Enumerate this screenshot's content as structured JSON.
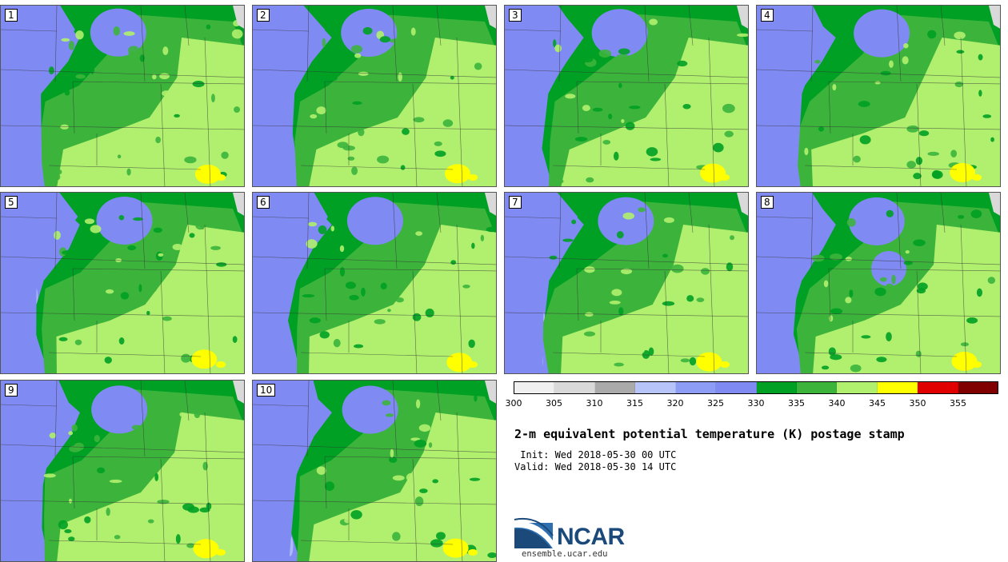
{
  "panels": [
    {
      "label": "1"
    },
    {
      "label": "2"
    },
    {
      "label": "3"
    },
    {
      "label": "4"
    },
    {
      "label": "5"
    },
    {
      "label": "6"
    },
    {
      "label": "7"
    },
    {
      "label": "8"
    },
    {
      "label": "9"
    },
    {
      "label": "10"
    }
  ],
  "colorbar": {
    "colors": [
      "#f0f0f0",
      "#d9d9d9",
      "#aaaaaa",
      "#b7c4fa",
      "#8d9cf5",
      "#7f8af3",
      "#00a024",
      "#3cb43c",
      "#b0f06e",
      "#ffff00",
      "#e00000",
      "#800000"
    ],
    "tick_labels": [
      "300",
      "305",
      "310",
      "315",
      "320",
      "325",
      "330",
      "335",
      "340",
      "345",
      "350",
      "355"
    ]
  },
  "title": "2-m equivalent potential temperature (K) postage stamp",
  "init": " Init: Wed 2018-05-30 00 UTC",
  "valid": "Valid: Wed 2018-05-30 14 UTC",
  "logo": {
    "name": "NCAR",
    "url": "ensemble.ucar.edu",
    "colors": {
      "dark_blue": "#1b4a7a",
      "light_blue": "#2e6fb0"
    }
  },
  "map_colors": {
    "cold": "#7f8af3",
    "cold_light": "#b7c4fa",
    "dark_green": "#00a024",
    "green": "#3cb43c",
    "light_green": "#b0f06e",
    "yellow": "#ffff00"
  }
}
